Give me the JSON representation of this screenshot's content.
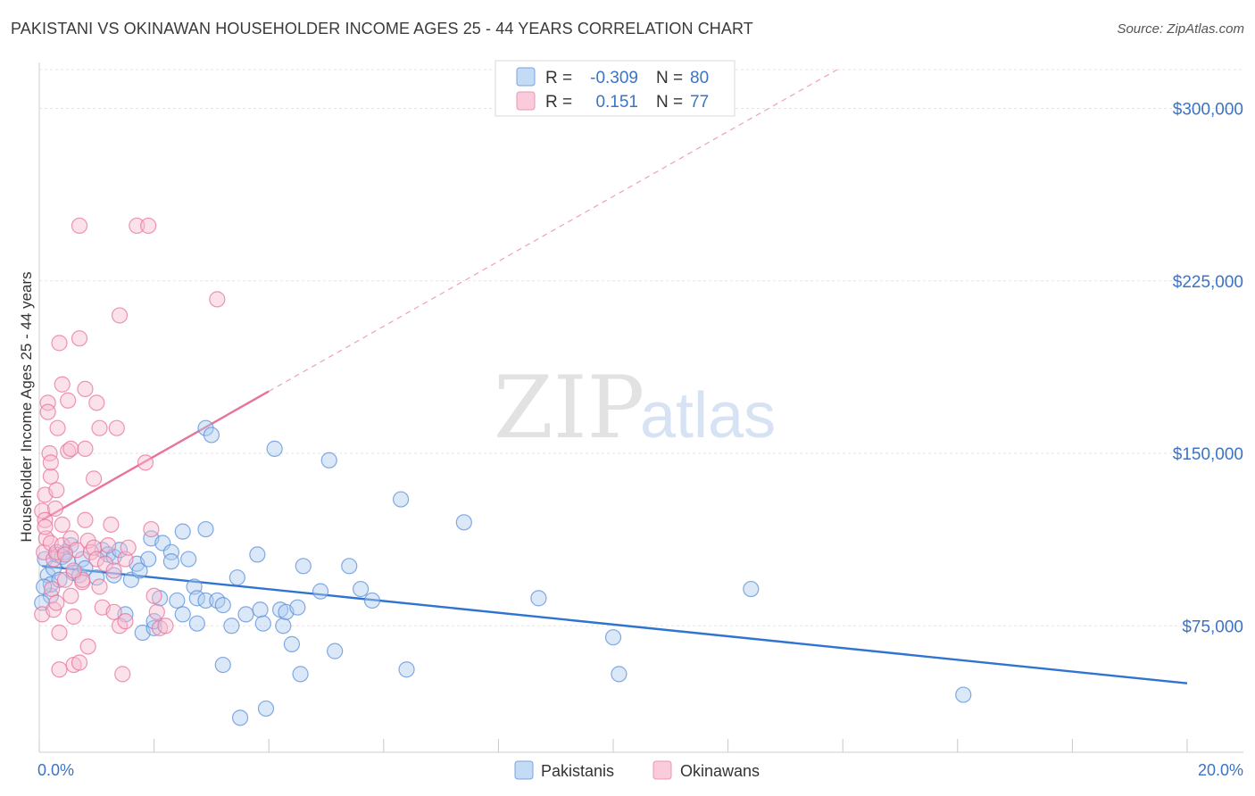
{
  "title": "PAKISTANI VS OKINAWAN HOUSEHOLDER INCOME AGES 25 - 44 YEARS CORRELATION CHART",
  "source": "Source: ZipAtlas.com",
  "watermark": {
    "zip": "ZIP",
    "atlas": "atlas"
  },
  "chart_data": {
    "type": "scatter",
    "title": "PAKISTANI VS OKINAWAN HOUSEHOLDER INCOME AGES 25 - 44 YEARS CORRELATION CHART",
    "xlabel": "",
    "ylabel": "Householder Income Ages 25 - 44 years",
    "xlim": [
      0,
      20
    ],
    "ylim": [
      20000,
      320000
    ],
    "x_tick_labels": {
      "left": "0.0%",
      "right": "20.0%"
    },
    "y_ticks": [
      75000,
      150000,
      225000,
      300000
    ],
    "y_tick_labels": [
      "$75,000",
      "$150,000",
      "$225,000",
      "$300,000"
    ],
    "legend": [
      {
        "r_label": "R =",
        "r_value": "-0.309",
        "n_label": "N =",
        "n_value": "80"
      },
      {
        "r_label": "R =",
        "r_value": "0.151",
        "n_label": "N =",
        "n_value": "77"
      }
    ],
    "series": [
      {
        "name": "Pakistanis",
        "color": "#5b8fd9",
        "fill": "#aecbf0",
        "trend": {
          "x0": 0.05,
          "y0": 101000,
          "x1": 20.0,
          "y1": 50000,
          "dashed_to": null
        },
        "points": [
          [
            0.1,
            104000
          ],
          [
            0.15,
            97000
          ],
          [
            0.2,
            88000
          ],
          [
            0.2,
            93000
          ],
          [
            0.25,
            100000
          ],
          [
            0.3,
            106000
          ],
          [
            0.35,
            95000
          ],
          [
            0.4,
            105000
          ],
          [
            0.45,
            107000
          ],
          [
            0.5,
            103000
          ],
          [
            0.55,
            110000
          ],
          [
            0.6,
            98000
          ],
          [
            0.7,
            97000
          ],
          [
            0.75,
            104000
          ],
          [
            0.8,
            100000
          ],
          [
            1.0,
            96000
          ],
          [
            1.1,
            108000
          ],
          [
            1.2,
            106000
          ],
          [
            1.3,
            105000
          ],
          [
            1.3,
            97000
          ],
          [
            1.4,
            108000
          ],
          [
            1.5,
            80000
          ],
          [
            1.6,
            95000
          ],
          [
            1.7,
            102000
          ],
          [
            1.75,
            99000
          ],
          [
            1.8,
            72000
          ],
          [
            1.9,
            104000
          ],
          [
            1.95,
            113000
          ],
          [
            2.0,
            74000
          ],
          [
            2.0,
            77000
          ],
          [
            2.1,
            87000
          ],
          [
            2.15,
            111000
          ],
          [
            2.3,
            107000
          ],
          [
            2.3,
            103000
          ],
          [
            2.4,
            86000
          ],
          [
            2.5,
            80000
          ],
          [
            2.5,
            116000
          ],
          [
            2.6,
            104000
          ],
          [
            2.7,
            92000
          ],
          [
            2.75,
            76000
          ],
          [
            2.75,
            87000
          ],
          [
            2.9,
            117000
          ],
          [
            2.9,
            86000
          ],
          [
            2.9,
            161000
          ],
          [
            3.0,
            158000
          ],
          [
            3.1,
            86000
          ],
          [
            3.2,
            84000
          ],
          [
            3.2,
            58000
          ],
          [
            3.35,
            75000
          ],
          [
            3.45,
            96000
          ],
          [
            3.5,
            35000
          ],
          [
            3.6,
            80000
          ],
          [
            3.8,
            106000
          ],
          [
            3.85,
            82000
          ],
          [
            3.9,
            76000
          ],
          [
            3.95,
            39000
          ],
          [
            4.1,
            152000
          ],
          [
            4.2,
            82000
          ],
          [
            4.25,
            75000
          ],
          [
            4.3,
            81000
          ],
          [
            4.4,
            67000
          ],
          [
            4.5,
            83000
          ],
          [
            4.55,
            54000
          ],
          [
            4.6,
            101000
          ],
          [
            4.9,
            90000
          ],
          [
            5.05,
            147000
          ],
          [
            5.15,
            64000
          ],
          [
            5.4,
            101000
          ],
          [
            5.6,
            91000
          ],
          [
            5.8,
            86000
          ],
          [
            6.3,
            130000
          ],
          [
            6.4,
            56000
          ],
          [
            7.4,
            120000
          ],
          [
            8.7,
            87000
          ],
          [
            10.0,
            70000
          ],
          [
            10.1,
            54000
          ],
          [
            12.4,
            91000
          ],
          [
            16.1,
            45000
          ],
          [
            0.05,
            85000
          ],
          [
            0.08,
            92000
          ]
        ]
      },
      {
        "name": "Okinawans",
        "color": "#e8739a",
        "fill": "#f6bcd0",
        "trend": {
          "x0": 0.05,
          "y0": 121000,
          "x1": 4.0,
          "y1": 177000,
          "dashed_to": {
            "x": 20.0,
            "y": 403000
          }
        },
        "points": [
          [
            0.05,
            80000
          ],
          [
            0.05,
            125000
          ],
          [
            0.08,
            107000
          ],
          [
            0.1,
            121000
          ],
          [
            0.1,
            132000
          ],
          [
            0.12,
            113000
          ],
          [
            0.15,
            172000
          ],
          [
            0.15,
            168000
          ],
          [
            0.18,
            150000
          ],
          [
            0.2,
            140000
          ],
          [
            0.2,
            111000
          ],
          [
            0.22,
            91000
          ],
          [
            0.25,
            82000
          ],
          [
            0.25,
            104000
          ],
          [
            0.28,
            126000
          ],
          [
            0.3,
            85000
          ],
          [
            0.3,
            107000
          ],
          [
            0.3,
            134000
          ],
          [
            0.32,
            161000
          ],
          [
            0.35,
            198000
          ],
          [
            0.35,
            72000
          ],
          [
            0.4,
            180000
          ],
          [
            0.4,
            110000
          ],
          [
            0.4,
            119000
          ],
          [
            0.45,
            95000
          ],
          [
            0.5,
            151000
          ],
          [
            0.5,
            173000
          ],
          [
            0.55,
            113000
          ],
          [
            0.55,
            88000
          ],
          [
            0.55,
            152000
          ],
          [
            0.6,
            58000
          ],
          [
            0.6,
            79000
          ],
          [
            0.65,
            108000
          ],
          [
            0.7,
            59000
          ],
          [
            0.7,
            200000
          ],
          [
            0.7,
            249000
          ],
          [
            0.75,
            94000
          ],
          [
            0.75,
            95000
          ],
          [
            0.8,
            178000
          ],
          [
            0.8,
            152000
          ],
          [
            0.8,
            121000
          ],
          [
            0.85,
            66000
          ],
          [
            0.85,
            112000
          ],
          [
            0.9,
            107000
          ],
          [
            0.95,
            139000
          ],
          [
            0.95,
            109000
          ],
          [
            1.0,
            172000
          ],
          [
            1.0,
            104000
          ],
          [
            1.05,
            92000
          ],
          [
            1.05,
            161000
          ],
          [
            1.1,
            83000
          ],
          [
            1.15,
            102000
          ],
          [
            1.2,
            110000
          ],
          [
            1.25,
            119000
          ],
          [
            1.3,
            81000
          ],
          [
            1.35,
            161000
          ],
          [
            1.3,
            99000
          ],
          [
            1.4,
            210000
          ],
          [
            1.4,
            75000
          ],
          [
            1.45,
            54000
          ],
          [
            1.5,
            77000
          ],
          [
            1.5,
            104000
          ],
          [
            1.55,
            109000
          ],
          [
            1.7,
            249000
          ],
          [
            1.85,
            146000
          ],
          [
            1.9,
            249000
          ],
          [
            1.95,
            117000
          ],
          [
            2.0,
            88000
          ],
          [
            2.05,
            81000
          ],
          [
            2.1,
            74000
          ],
          [
            2.2,
            75000
          ],
          [
            3.1,
            217000
          ],
          [
            0.2,
            146000
          ],
          [
            0.35,
            56000
          ],
          [
            0.45,
            106000
          ],
          [
            0.6,
            99000
          ],
          [
            0.1,
            118000
          ]
        ]
      }
    ]
  },
  "bottom_legend": {
    "pakistanis": "Pakistanis",
    "okinawans": "Okinawans"
  }
}
